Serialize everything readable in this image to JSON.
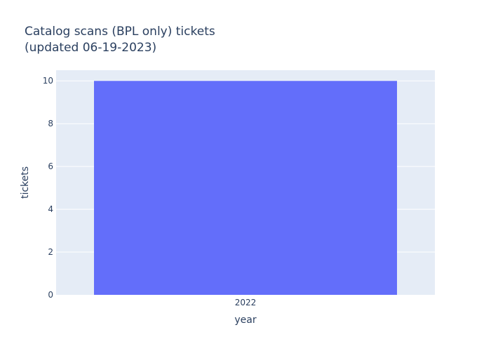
{
  "chart_data": {
    "type": "bar",
    "title_lines": [
      "Catalog scans (BPL only) tickets",
      "(updated 06-19-2023)"
    ],
    "xlabel": "year",
    "ylabel": "tickets",
    "categories": [
      "2022"
    ],
    "values": [
      10
    ],
    "ylim": [
      0,
      10.5
    ],
    "yticks": [
      0,
      2,
      4,
      6,
      8,
      10
    ],
    "grid": true,
    "bar_color": "#636efa",
    "plot_background": "#e5ecf6"
  }
}
